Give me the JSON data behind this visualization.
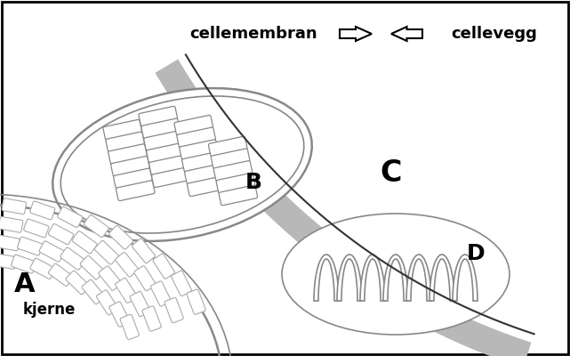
{
  "fig_width": 6.41,
  "fig_height": 4.0,
  "dpi": 100,
  "bg_color": "#ffffff",
  "border_color": "#000000",
  "cell_wall_color": "#b8b8b8",
  "organelle_edge": "#888888",
  "organelle_inner": "#aaaaaa",
  "label_A": "A",
  "label_A_sub": "kjerne",
  "label_B": "B",
  "label_C": "C",
  "label_D": "D",
  "label_membrane": "cellemembran",
  "label_wall": "cellevegg",
  "label_fontsize": 18,
  "annotation_fontsize": 12
}
